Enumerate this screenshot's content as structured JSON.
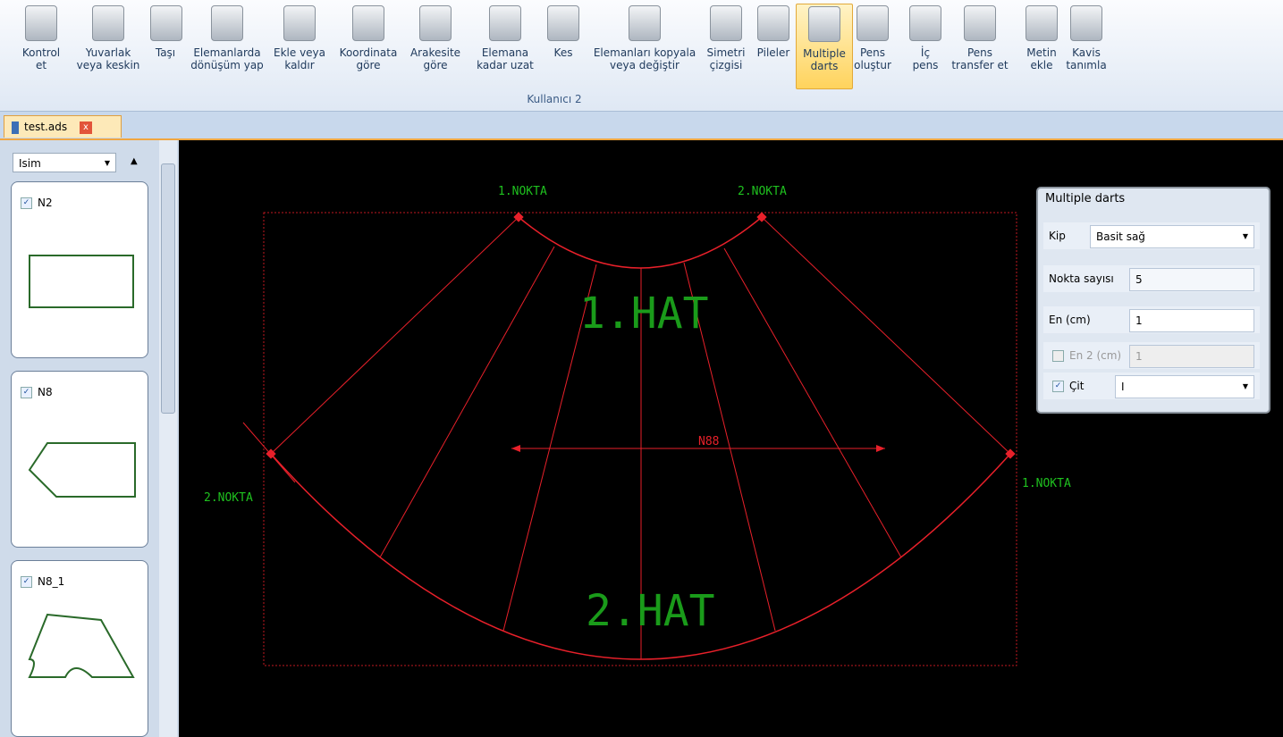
{
  "ribbon": {
    "buttons": [
      [
        "Kontrol",
        "et"
      ],
      [
        "Yuvarlak",
        "veya keskin"
      ],
      [
        "Taşı"
      ],
      [
        "Elemanlarda",
        "dönüşüm yap"
      ],
      [
        "Ekle veya",
        "kaldır"
      ],
      [
        "Koordinata",
        "göre"
      ],
      [
        "Arakesite",
        "göre"
      ],
      [
        "Elemana",
        "kadar uzat"
      ],
      [
        "Kes"
      ],
      [
        "Elemanları kopyala",
        "veya değiştir"
      ],
      [
        "Simetri",
        "çizgisi"
      ],
      [
        "Pileler"
      ],
      [
        "Multiple",
        "darts"
      ],
      [
        "Pens",
        "oluştur"
      ],
      [
        "İç",
        "pens"
      ],
      [
        "Pens",
        "transfer et"
      ],
      [
        "Metin",
        "ekle"
      ],
      [
        "Kavis",
        "tanımla"
      ]
    ],
    "group": "Kullanıcı 2"
  },
  "tab": "test.ads",
  "side_panel": {
    "sort": "Isim",
    "items": [
      "N2",
      "N8",
      "N8_1"
    ]
  },
  "canvas": {
    "labels": [
      "1.NOKTA",
      "2.NOKTA",
      "2.NOKTA",
      "1.NOKTA"
    ],
    "line_1": "1.HAT",
    "line_2": "2.HAT",
    "measure": "N88"
  },
  "dialog": {
    "title": "Multiple darts",
    "kip_label": "Kip",
    "kip": "Basit sağ",
    "count_label": "Nokta sayısı",
    "count": "5",
    "width_label": "En (cm)",
    "width": "1",
    "width2_label": "En 2 (cm)",
    "width2": "1",
    "cit_label": "Çit",
    "cit": "I"
  }
}
